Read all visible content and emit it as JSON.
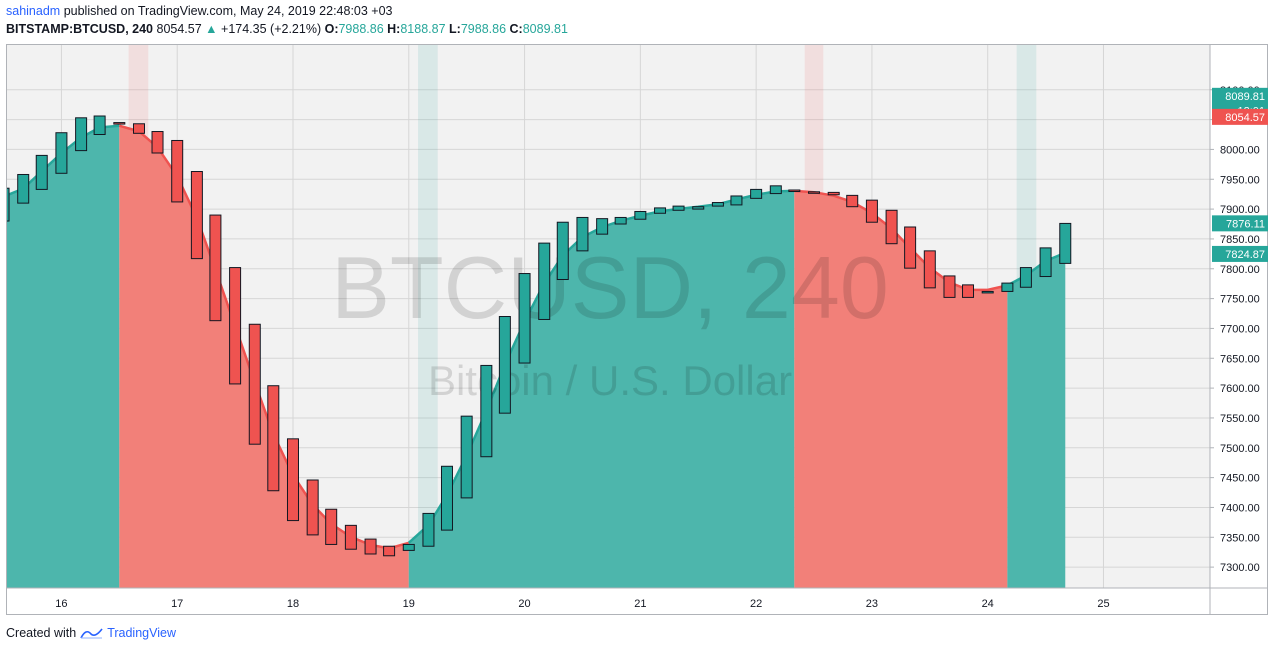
{
  "header": {
    "author": "sahinadm",
    "published_text": "published on TradingView.com, May 24, 2019 22:48:03 +03",
    "symbol": "BITSTAMP:BTCUSD, 240",
    "last": "8054.57",
    "arrow": "▲",
    "change": "+174.35 (+2.21%)",
    "o_label": "O:",
    "o_value": "7988.86",
    "h_label": "H:",
    "h_value": "8188.87",
    "l_label": "L:",
    "l_value": "7988.86",
    "c_label": "C:",
    "c_value": "8089.81"
  },
  "watermark": {
    "title": "BTCUSD, 240",
    "subtitle": "Bitcoin / U.S. Dollar"
  },
  "price_tags": [
    {
      "value": 8089.81,
      "label": "8089.81",
      "color": "#26a69a"
    },
    {
      "value": 8065,
      "label": "12:01",
      "color": "#26a69a"
    },
    {
      "value": 8054.57,
      "label": "8054.57",
      "color": "#ef5350"
    },
    {
      "value": 7876.11,
      "label": "7876.11",
      "color": "#26a69a"
    },
    {
      "value": 7824.87,
      "label": "7824.87",
      "color": "#26a69a"
    }
  ],
  "footer": {
    "created_with": "Created with",
    "brand": "TradingView"
  },
  "chart_data": {
    "type": "candlestick",
    "y_ticks": [
      8100,
      8050,
      8000,
      7950,
      7900,
      7850,
      7800,
      7750,
      7700,
      7650,
      7600,
      7550,
      7500,
      7450,
      7400,
      7350,
      7300
    ],
    "ylim": [
      7265,
      8175
    ],
    "x_ticks": [
      {
        "x": 16,
        "label": "16"
      },
      {
        "x": 17,
        "label": "17"
      },
      {
        "x": 18,
        "label": "18"
      },
      {
        "x": 19,
        "label": "19"
      },
      {
        "x": 20,
        "label": "20"
      },
      {
        "x": 21,
        "label": "21"
      },
      {
        "x": 22,
        "label": "22"
      },
      {
        "x": 23,
        "label": "23"
      },
      {
        "x": 24,
        "label": "24"
      },
      {
        "x": 25,
        "label": "25"
      }
    ],
    "xlim": [
      15.53,
      25.92
    ],
    "colors": {
      "up": "#26a69a",
      "down": "#ef5350",
      "up_fill": "#4db6ac",
      "down_fill": "#f28079"
    },
    "candles": [
      [
        15.5,
        7880,
        7935
      ],
      [
        15.67,
        7910,
        7958
      ],
      [
        15.83,
        7933,
        7990
      ],
      [
        16.0,
        7960,
        8028
      ],
      [
        16.17,
        7998,
        8053
      ],
      [
        16.33,
        8025,
        8056
      ],
      [
        16.5,
        8045,
        8043
      ],
      [
        16.67,
        8043,
        8027
      ],
      [
        16.83,
        8030,
        7994
      ],
      [
        17.0,
        8015,
        7912
      ],
      [
        17.17,
        7963,
        7817
      ],
      [
        17.33,
        7890,
        7713
      ],
      [
        17.5,
        7802,
        7607
      ],
      [
        17.67,
        7707,
        7506
      ],
      [
        17.83,
        7604,
        7428
      ],
      [
        18.0,
        7515,
        7378
      ],
      [
        18.17,
        7446,
        7354
      ],
      [
        18.33,
        7397,
        7338
      ],
      [
        18.5,
        7370,
        7330
      ],
      [
        18.67,
        7347,
        7322
      ],
      [
        18.83,
        7335,
        7319
      ],
      [
        19.0,
        7328,
        7338
      ],
      [
        19.17,
        7335,
        7390
      ],
      [
        19.33,
        7362,
        7469
      ],
      [
        19.5,
        7416,
        7553
      ],
      [
        19.67,
        7485,
        7638
      ],
      [
        19.83,
        7558,
        7720
      ],
      [
        20.0,
        7642,
        7792
      ],
      [
        20.17,
        7715,
        7843
      ],
      [
        20.33,
        7782,
        7878
      ],
      [
        20.5,
        7830,
        7886
      ],
      [
        20.67,
        7858,
        7884
      ],
      [
        20.83,
        7875,
        7886
      ],
      [
        21.0,
        7883,
        7896
      ],
      [
        21.17,
        7893,
        7902
      ],
      [
        21.33,
        7898,
        7905
      ],
      [
        21.5,
        7900,
        7904
      ],
      [
        21.67,
        7905,
        7911
      ],
      [
        21.83,
        7907,
        7922
      ],
      [
        22.0,
        7918,
        7933
      ],
      [
        22.17,
        7926,
        7939
      ],
      [
        22.33,
        7932,
        7930
      ],
      [
        22.5,
        7929,
        7927
      ],
      [
        22.67,
        7928,
        7924
      ],
      [
        22.83,
        7923,
        7904
      ],
      [
        23.0,
        7915,
        7878
      ],
      [
        23.17,
        7898,
        7842
      ],
      [
        23.33,
        7870,
        7801
      ],
      [
        23.5,
        7830,
        7768
      ],
      [
        23.67,
        7788,
        7752
      ],
      [
        23.83,
        7773,
        7752
      ],
      [
        24.0,
        7762,
        7762
      ],
      [
        24.17,
        7762,
        7776
      ],
      [
        24.33,
        7769,
        7802
      ],
      [
        24.5,
        7787,
        7835
      ],
      [
        24.67,
        7809,
        7876
      ]
    ],
    "regions": [
      {
        "from": 15.42,
        "to": 16.5,
        "color": "up"
      },
      {
        "from": 16.5,
        "to": 19.0,
        "color": "down"
      },
      {
        "from": 19.0,
        "to": 22.33,
        "color": "up"
      },
      {
        "from": 22.33,
        "to": 24.17,
        "color": "down"
      },
      {
        "from": 24.17,
        "to": 24.67,
        "color": "up"
      }
    ],
    "highlight_bands": [
      {
        "from": 16.58,
        "to": 16.75,
        "color": "down"
      },
      {
        "from": 19.08,
        "to": 19.25,
        "color": "up"
      },
      {
        "from": 22.42,
        "to": 22.58,
        "color": "down"
      },
      {
        "from": 24.25,
        "to": 24.42,
        "color": "up"
      }
    ]
  }
}
